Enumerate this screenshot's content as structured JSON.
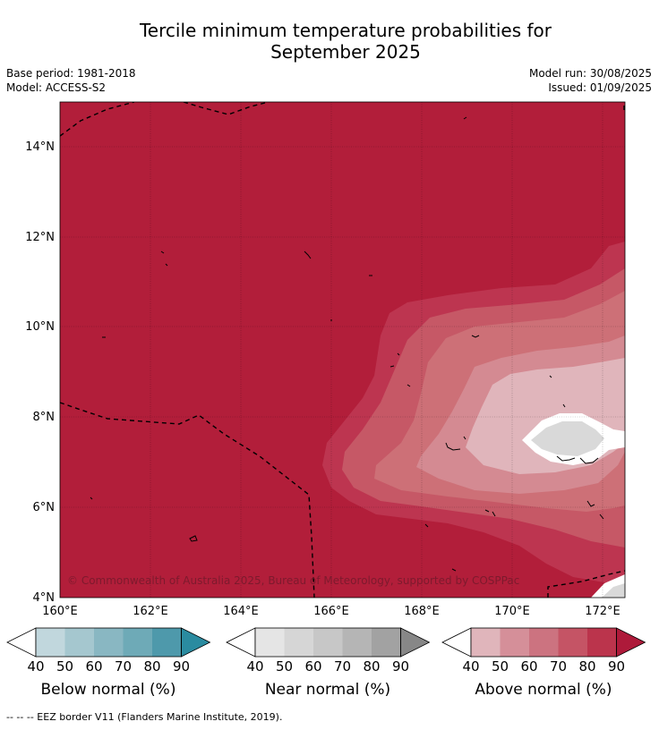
{
  "title_line1": "Tercile minimum temperature probabilities for",
  "title_line2": "September 2025",
  "meta": {
    "base_period": "Base period: 1981-2018",
    "model": "Model: ACCESS-S2",
    "model_run": "Model run: 30/08/2025",
    "issued": "Issued: 01/09/2025"
  },
  "map": {
    "x_ticks": [
      "160°E",
      "162°E",
      "164°E",
      "166°E",
      "168°E",
      "170°E",
      "172°E"
    ],
    "y_ticks": [
      "14°N",
      "12°N",
      "10°N",
      "8°N",
      "6°N",
      "4°N"
    ],
    "copyright": "© Commonwealth of Australia 2025, Bureau of Meteorology, supported by COSPPac",
    "extent": {
      "lon": [
        160,
        172.5
      ],
      "lat": [
        4,
        15
      ]
    },
    "colors": {
      "above_90": "#b21e3a",
      "above_80": "#bd3550",
      "above_70": "#c65866",
      "above_60": "#cd7077",
      "above_50": "#d48a92",
      "above_40": "#e0b5bb",
      "no_signal": "#ffffff",
      "near_gray": "#d9d9d9"
    }
  },
  "colorbars": [
    {
      "title": "Below normal (%)",
      "ticks": [
        "40",
        "50",
        "60",
        "70",
        "80",
        "90"
      ],
      "colors": [
        "#ffffff",
        "#c1d7dd",
        "#a5c7cf",
        "#89b7c2",
        "#6eaab7",
        "#4e99ab",
        "#2a8ba0"
      ]
    },
    {
      "title": "Near normal (%)",
      "ticks": [
        "40",
        "50",
        "60",
        "70",
        "80",
        "90"
      ],
      "colors": [
        "#ffffff",
        "#e5e5e5",
        "#d6d6d6",
        "#c7c7c7",
        "#b5b5b5",
        "#a2a2a2",
        "#878787"
      ]
    },
    {
      "title": "Above normal (%)",
      "ticks": [
        "40",
        "50",
        "60",
        "70",
        "80",
        "90"
      ],
      "colors": [
        "#ffffff",
        "#e0b5bb",
        "#d58f99",
        "#cc7380",
        "#c55465",
        "#bb344c",
        "#ae1a3a"
      ]
    }
  ],
  "footer": "--  --  -- EEZ border V11 (Flanders Marine Institute, 2019)."
}
